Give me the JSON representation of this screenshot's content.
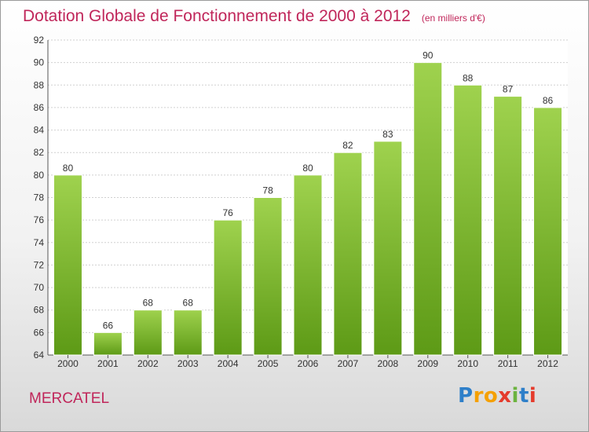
{
  "title": "Dotation Globale de Fonctionnement de 2000 à 2012",
  "unit": "(en milliers d'€)",
  "location": "MERCATEL",
  "brand": {
    "letters": [
      "P",
      "r",
      "o",
      "x",
      "i",
      "t",
      "i"
    ],
    "colors": [
      "#2e7fc9",
      "#f5a000",
      "#f5a000",
      "#e53b2c",
      "#6cb33f",
      "#2e7fc9",
      "#e53b2c"
    ]
  },
  "colors": {
    "title": "#c0265a",
    "bar_light": "#9fd24e",
    "bar_dark": "#5d9a16",
    "grid": "#d0d0d0"
  },
  "chart_data": {
    "type": "bar",
    "title": "Dotation Globale de Fonctionnement de 2000 à 2012",
    "subtitle": "(en milliers d'€)",
    "xlabel": "",
    "ylabel": "",
    "categories": [
      "2000",
      "2001",
      "2002",
      "2003",
      "2004",
      "2005",
      "2006",
      "2007",
      "2008",
      "2009",
      "2010",
      "2011",
      "2012"
    ],
    "values": [
      80,
      66,
      68,
      68,
      76,
      78,
      80,
      82,
      83,
      90,
      88,
      87,
      86
    ],
    "ylim": [
      64,
      92
    ],
    "yticks": [
      64,
      66,
      68,
      70,
      72,
      74,
      76,
      78,
      80,
      82,
      84,
      86,
      88,
      90,
      92
    ],
    "grid": true,
    "data_labels": true
  }
}
